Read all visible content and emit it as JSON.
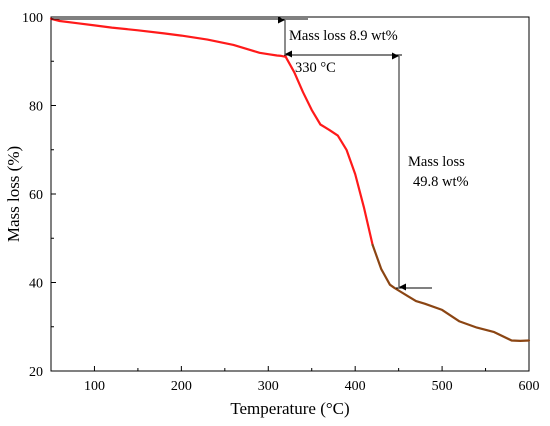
{
  "chart_data": {
    "type": "line",
    "title": "",
    "xlabel": "Temperature  (°C)",
    "ylabel": "Mass loss  (%)",
    "xlim": [
      50,
      600
    ],
    "ylim": [
      20,
      100
    ],
    "xticks": [
      100,
      200,
      300,
      400,
      500,
      600
    ],
    "yticks": [
      20,
      40,
      60,
      80,
      100
    ],
    "grid": false,
    "legend": "none",
    "series": [
      {
        "color": "#ff1a1a",
        "x": [
          50,
          60,
          80,
          100,
          120,
          150,
          180,
          200,
          230,
          260,
          280,
          290,
          300,
          310,
          315,
          320
        ],
        "y": [
          99.6,
          99.1,
          98.6,
          98.1,
          97.6,
          97.0,
          96.3,
          95.8,
          94.9,
          93.7,
          92.5,
          91.9,
          91.6,
          91.3,
          91.2,
          91.0
        ]
      },
      {
        "color": "#ff1a1a",
        "x": [
          320,
          330,
          340,
          350,
          360,
          370,
          380,
          390,
          400,
          410,
          420
        ],
        "y": [
          91.0,
          87.5,
          83.0,
          79.0,
          75.7,
          74.5,
          73.2,
          70.0,
          64.5,
          57.0,
          48.5
        ]
      },
      {
        "color": "#8b4513",
        "x": [
          420,
          430,
          440,
          445,
          450,
          460,
          470,
          480,
          500,
          520,
          540,
          560,
          580,
          590,
          600
        ],
        "y": [
          48.5,
          43.0,
          39.5,
          38.8,
          38.2,
          37.0,
          35.8,
          35.2,
          33.8,
          31.2,
          29.8,
          28.8,
          26.9,
          26.8,
          26.9
        ]
      }
    ],
    "annotations": {
      "mass_loss_1": "Mass loss  8.9 wt%",
      "temperature_mark": "330 °C",
      "mass_loss_2_line1": "Mass loss",
      "mass_loss_2_line2": "49.8 wt%"
    }
  }
}
